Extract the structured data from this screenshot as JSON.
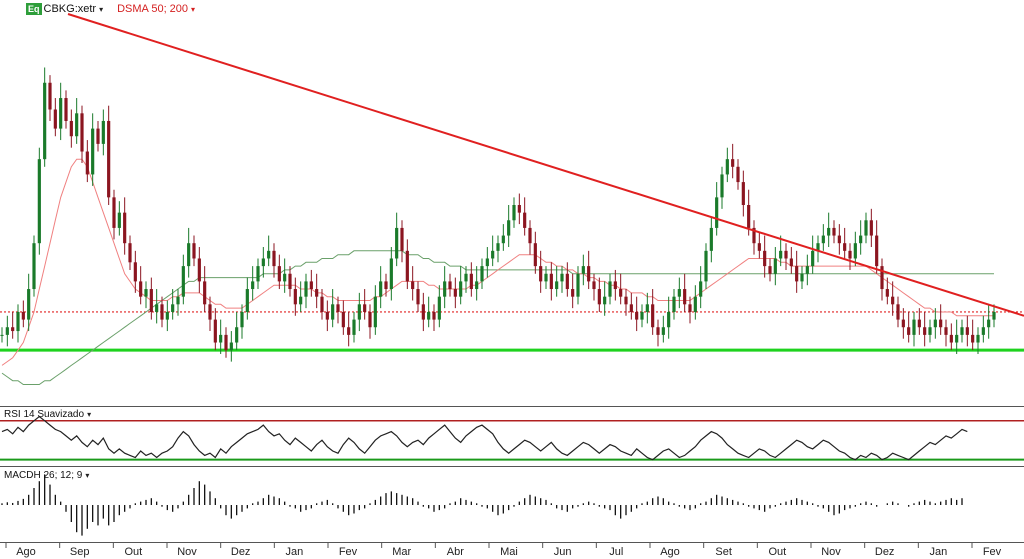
{
  "header": {
    "badge": "Eq",
    "symbol": "CBKG:xetr",
    "overlay": "DSMA 50; 200",
    "caret": "▾"
  },
  "rsi_panel": {
    "title": "RSI 14 Suavizado",
    "caret": "▾"
  },
  "macd_panel": {
    "title": "MACDH 26; 12; 9",
    "caret": "▾"
  },
  "colors": {
    "up": "#1a7a2a",
    "down": "#8b1520",
    "trendline": "#e02020",
    "support": "#1ed21e",
    "sma50": "#f08080",
    "sma200": "#6aa06a",
    "rsi_upper": "#b02020",
    "rsi_lower": "#1a9a1a"
  },
  "chart_data": {
    "type": "candlestick",
    "x_labels": [
      "Ago",
      "Sep",
      "Out",
      "Nov",
      "Dez",
      "Jan",
      "Fev",
      "Mar",
      "Abr",
      "Mai",
      "Jun",
      "Jul",
      "Ago",
      "Set",
      "Out",
      "Nov",
      "Dez",
      "Jan",
      "Fev"
    ],
    "price_ylim": [
      0,
      100
    ],
    "closes": [
      16,
      18,
      17,
      22,
      20,
      28,
      40,
      62,
      82,
      75,
      70,
      78,
      72,
      68,
      74,
      64,
      58,
      70,
      66,
      72,
      52,
      44,
      48,
      40,
      35,
      30,
      26,
      28,
      22,
      24,
      20,
      22,
      24,
      26,
      34,
      40,
      36,
      30,
      24,
      20,
      14,
      16,
      12,
      14,
      18,
      22,
      28,
      30,
      34,
      36,
      38,
      34,
      30,
      32,
      28,
      24,
      26,
      30,
      28,
      26,
      22,
      20,
      24,
      22,
      18,
      16,
      20,
      24,
      22,
      18,
      26,
      30,
      28,
      36,
      44,
      38,
      30,
      28,
      24,
      20,
      22,
      20,
      26,
      30,
      28,
      26,
      30,
      32,
      28,
      30,
      34,
      36,
      38,
      40,
      42,
      46,
      50,
      48,
      44,
      40,
      34,
      30,
      32,
      28,
      30,
      32,
      28,
      26,
      32,
      34,
      30,
      28,
      24,
      26,
      30,
      28,
      26,
      24,
      22,
      20,
      22,
      24,
      18,
      16,
      18,
      22,
      26,
      28,
      24,
      22,
      26,
      30,
      38,
      44,
      52,
      58,
      62,
      60,
      56,
      50,
      44,
      40,
      38,
      34,
      32,
      36,
      38,
      36,
      34,
      30,
      32,
      34,
      38,
      40,
      42,
      44,
      42,
      40,
      38,
      36,
      40,
      42,
      46,
      42,
      34,
      28,
      26,
      24,
      20,
      18,
      16,
      20,
      18,
      16,
      18,
      20,
      18,
      16,
      14,
      16,
      18,
      16,
      14,
      16,
      18,
      20,
      22
    ],
    "sma50": [
      8,
      9,
      10,
      12,
      14,
      18,
      22,
      28,
      34,
      40,
      46,
      52,
      56,
      60,
      62,
      62,
      60,
      56,
      52,
      48,
      44,
      40,
      36,
      32,
      30,
      28,
      27,
      26,
      25,
      25,
      25,
      25,
      26,
      26,
      27,
      27,
      27,
      27,
      26,
      25,
      24,
      24,
      23,
      23,
      23,
      23,
      24,
      25,
      26,
      27,
      28,
      29,
      29,
      29,
      29,
      29,
      28,
      28,
      28,
      27,
      27,
      26,
      26,
      25,
      25,
      25,
      25,
      25,
      25,
      25,
      26,
      26,
      27,
      28,
      29,
      30,
      30,
      30,
      30,
      30,
      29,
      29,
      28,
      28,
      28,
      28,
      28,
      28,
      29,
      29,
      30,
      31,
      32,
      33,
      34,
      35,
      36,
      37,
      37,
      37,
      37,
      36,
      35,
      35,
      34,
      34,
      33,
      33,
      32,
      32,
      31,
      31,
      30,
      30,
      29,
      29,
      28,
      28,
      27,
      27,
      27,
      26,
      26,
      25,
      25,
      25,
      25,
      25,
      25,
      25,
      26,
      27,
      28,
      29,
      30,
      31,
      32,
      33,
      34,
      35,
      36,
      36,
      36,
      36,
      36,
      36,
      35,
      35,
      34,
      34,
      34,
      34,
      34,
      34,
      34,
      34,
      34,
      34,
      34,
      34,
      34,
      34,
      34,
      33,
      32,
      31,
      30,
      29,
      28,
      27,
      26,
      25,
      24,
      23,
      23,
      22,
      22,
      22,
      22,
      21,
      21,
      21,
      21,
      21,
      21,
      21,
      21
    ],
    "sma200": [
      6,
      5,
      4,
      4,
      3,
      3,
      3,
      3,
      4,
      4,
      5,
      6,
      7,
      8,
      9,
      10,
      11,
      12,
      13,
      14,
      15,
      16,
      17,
      18,
      19,
      20,
      21,
      22,
      23,
      24,
      25,
      26,
      27,
      28,
      29,
      30,
      30,
      31,
      31,
      31,
      31,
      31,
      31,
      31,
      31,
      31,
      31,
      31,
      31,
      32,
      32,
      32,
      32,
      33,
      33,
      34,
      34,
      35,
      35,
      35,
      36,
      36,
      36,
      37,
      37,
      37,
      38,
      38,
      38,
      38,
      38,
      38,
      38,
      38,
      38,
      38,
      37,
      37,
      37,
      36,
      36,
      35,
      35,
      35,
      34,
      34,
      34,
      33,
      33,
      33,
      33,
      33,
      33,
      33,
      33,
      33,
      33,
      33,
      33,
      33,
      33,
      33,
      33,
      33,
      33,
      33,
      33,
      32,
      32,
      32,
      32,
      32,
      32,
      32,
      32,
      32,
      32,
      32,
      32,
      32,
      32,
      32,
      32,
      32,
      32,
      32,
      32,
      32,
      32,
      32,
      32,
      32,
      32,
      32,
      32,
      32,
      32,
      32,
      32,
      32,
      32,
      32,
      32,
      32,
      32,
      32,
      32,
      32,
      32,
      32,
      32,
      32,
      32,
      32,
      32,
      32,
      32,
      32,
      32,
      32,
      32,
      32,
      32,
      32,
      32,
      32,
      32,
      32,
      32,
      32,
      32,
      32,
      32,
      32,
      32,
      32,
      32,
      32,
      32,
      32,
      32,
      32,
      32,
      32,
      32,
      32,
      32
    ],
    "trendline": {
      "from": [
        0,
        100
      ],
      "to": [
        1,
        21
      ]
    },
    "support_level": 12,
    "reference_level": 22,
    "rsi": [
      60,
      62,
      58,
      64,
      60,
      66,
      70,
      74,
      70,
      66,
      62,
      60,
      56,
      52,
      56,
      50,
      46,
      52,
      48,
      54,
      44,
      40,
      44,
      40,
      38,
      36,
      42,
      38,
      40,
      36,
      40,
      42,
      46,
      54,
      60,
      56,
      48,
      42,
      38,
      40,
      36,
      44,
      40,
      46,
      50,
      54,
      58,
      60,
      62,
      66,
      60,
      56,
      58,
      52,
      48,
      54,
      50,
      46,
      42,
      48,
      52,
      46,
      42,
      40,
      48,
      54,
      50,
      44,
      40,
      46,
      52,
      56,
      58,
      60,
      56,
      50,
      46,
      50,
      52,
      48,
      54,
      58,
      62,
      66,
      60,
      54,
      50,
      56,
      60,
      64,
      66,
      62,
      58,
      50,
      44,
      40,
      44,
      48,
      52,
      50,
      46,
      42,
      46,
      50,
      44,
      40,
      38,
      42,
      46,
      50,
      48,
      44,
      40,
      44,
      48,
      46,
      42,
      40,
      38,
      44,
      40,
      36,
      34,
      38,
      42,
      44,
      40,
      36,
      38,
      42,
      46,
      52,
      56,
      60,
      58,
      54,
      48,
      44,
      40,
      38,
      36,
      40,
      44,
      42,
      38,
      36,
      40,
      44,
      48,
      52,
      50,
      46,
      44,
      48,
      52,
      50,
      46,
      42,
      40,
      36,
      34,
      38,
      36,
      40,
      38,
      34,
      36,
      40,
      38,
      36,
      34,
      38,
      42,
      46,
      50,
      48,
      52,
      56,
      54,
      58,
      62,
      60
    ],
    "macdh": [
      0.05,
      0.08,
      0.06,
      0.12,
      0.18,
      0.3,
      0.5,
      0.7,
      0.9,
      0.6,
      0.3,
      0.1,
      -0.2,
      -0.5,
      -0.8,
      -0.9,
      -0.7,
      -0.5,
      -0.6,
      -0.4,
      -0.6,
      -0.5,
      -0.3,
      -0.2,
      -0.1,
      0.05,
      0.1,
      0.15,
      0.2,
      0.1,
      -0.05,
      -0.15,
      -0.2,
      -0.1,
      0.1,
      0.3,
      0.5,
      0.7,
      0.6,
      0.4,
      0.2,
      -0.1,
      -0.3,
      -0.4,
      -0.3,
      -0.2,
      -0.1,
      0.05,
      0.1,
      0.2,
      0.3,
      0.25,
      0.2,
      0.1,
      -0.05,
      -0.1,
      -0.2,
      -0.15,
      -0.1,
      0.05,
      0.1,
      0.15,
      0.05,
      -0.1,
      -0.2,
      -0.3,
      -0.25,
      -0.15,
      -0.1,
      0.05,
      0.15,
      0.25,
      0.35,
      0.4,
      0.35,
      0.3,
      0.25,
      0.2,
      0.1,
      -0.05,
      -0.1,
      -0.2,
      -0.15,
      -0.1,
      0.05,
      0.1,
      0.2,
      0.15,
      0.1,
      0.05,
      -0.05,
      -0.1,
      -0.2,
      -0.3,
      -0.25,
      -0.15,
      -0.05,
      0.1,
      0.2,
      0.3,
      0.25,
      0.2,
      0.15,
      0.05,
      -0.1,
      -0.15,
      -0.2,
      -0.1,
      -0.05,
      0.05,
      0.1,
      0.05,
      -0.05,
      -0.1,
      -0.15,
      -0.3,
      -0.4,
      -0.3,
      -0.2,
      -0.1,
      0.05,
      0.1,
      0.2,
      0.25,
      0.2,
      0.1,
      0.05,
      -0.05,
      -0.1,
      -0.15,
      -0.1,
      0.05,
      0.1,
      0.2,
      0.3,
      0.25,
      0.2,
      0.15,
      0.1,
      0.05,
      -0.05,
      -0.1,
      -0.15,
      -0.2,
      -0.1,
      -0.05,
      0.05,
      0.1,
      0.15,
      0.2,
      0.15,
      0.1,
      0.05,
      -0.05,
      -0.1,
      -0.2,
      -0.3,
      -0.25,
      -0.15,
      -0.1,
      -0.05,
      0.05,
      0.1,
      0.05,
      -0.05,
      0,
      0.05,
      0.1,
      0.05,
      0,
      -0.05,
      0.05,
      0.1,
      0.15,
      0.1,
      0.05,
      0.1,
      0.15,
      0.2,
      0.15,
      0.2
    ]
  }
}
